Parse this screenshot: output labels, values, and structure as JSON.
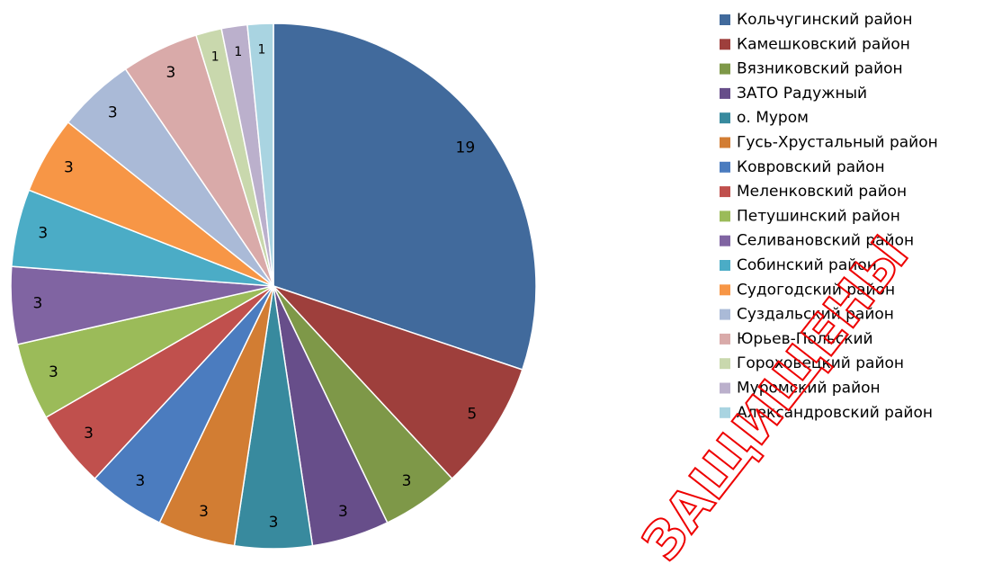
{
  "chart_data": {
    "type": "pie",
    "categories": [
      "Кольчугинский район",
      "Камешковский район",
      "Вязниковский район",
      "ЗАТО Радужный",
      "о. Муром",
      "Гусь-Хрустальный район",
      "Ковровский район",
      "Меленковский район",
      "Петушинский район",
      "Селивановский район",
      "Собинский район",
      "Судогодский район",
      "Суздальский район",
      "Юрьев-Польский",
      "Гороховецкий район",
      "Муромский район",
      "Александровский район"
    ],
    "values": [
      19,
      5,
      3,
      3,
      3,
      3,
      3,
      3,
      3,
      3,
      3,
      3,
      3,
      3,
      1,
      1,
      1
    ],
    "colors": [
      "#416a9c",
      "#9e3f3c",
      "#7e9848",
      "#674e8a",
      "#388a9e",
      "#d27d33",
      "#4b7cbf",
      "#c0504d",
      "#9bbb59",
      "#8064a2",
      "#4bacc6",
      "#f79646",
      "#aabad7",
      "#d9aaa9",
      "#c9d8ad",
      "#bbb0cc",
      "#a9d4e1"
    ],
    "legend": "right",
    "watermark": "ЗАЩИЩЕНЫ"
  }
}
